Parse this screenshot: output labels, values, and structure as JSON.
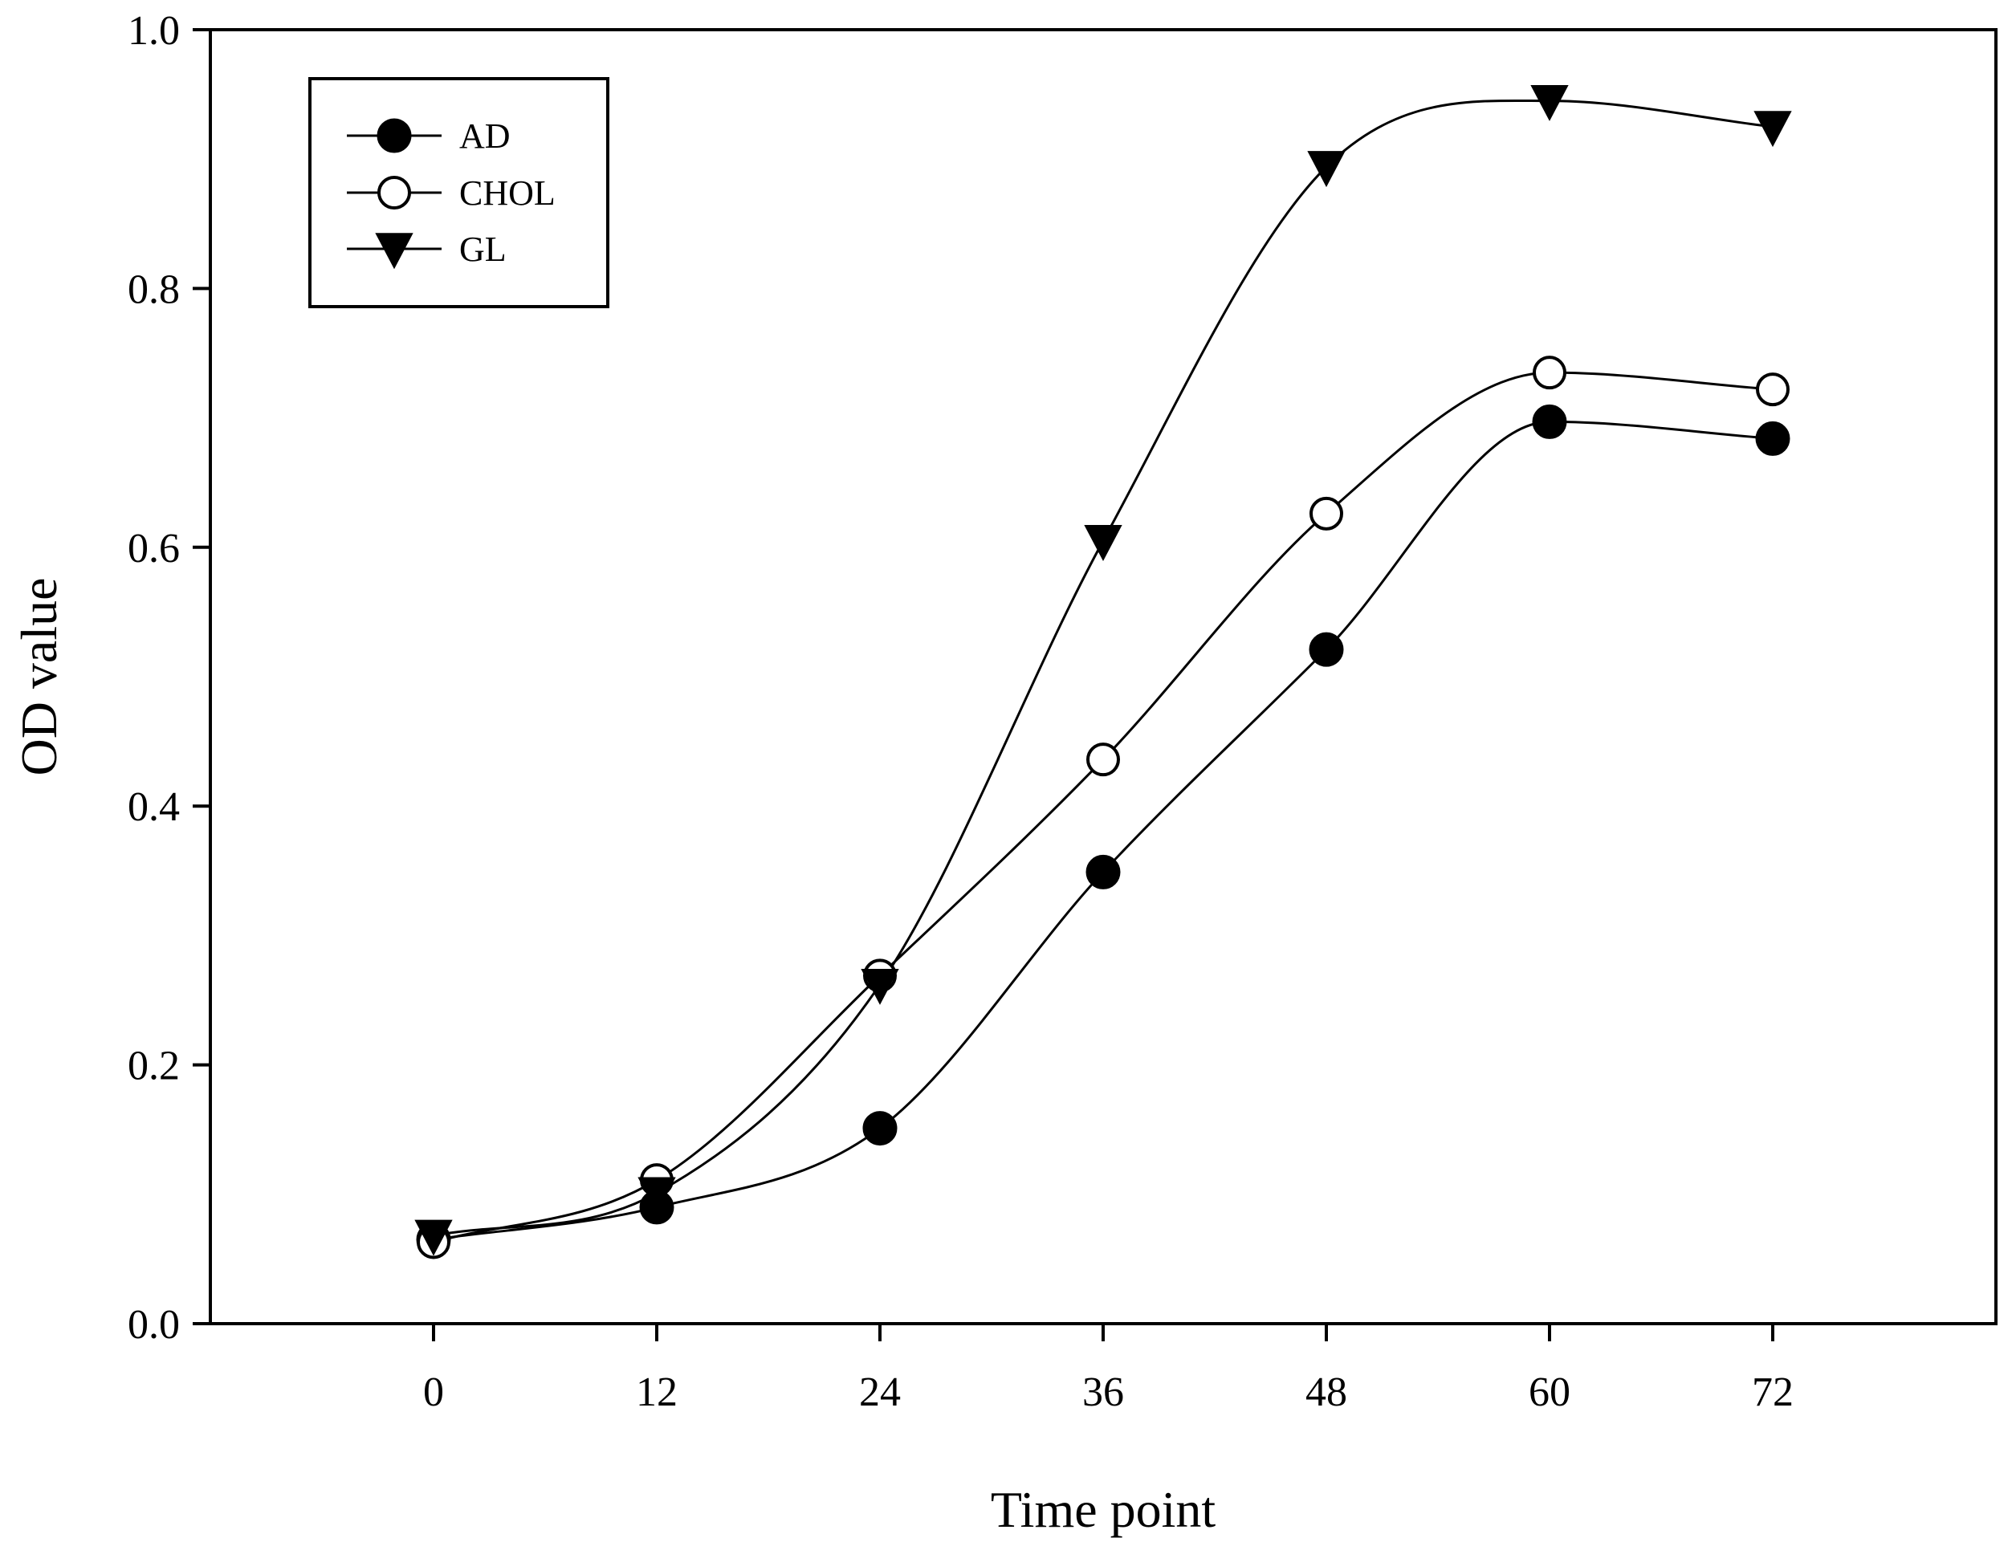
{
  "chart_data": {
    "type": "line",
    "title": "",
    "xlabel": "Time point",
    "ylabel": "OD value",
    "x": [
      0,
      12,
      24,
      36,
      48,
      60,
      72
    ],
    "xticks": [
      "0",
      "12",
      "24",
      "36",
      "48",
      "60",
      "72"
    ],
    "xlim": [
      -12,
      84
    ],
    "ylim": [
      0.0,
      1.0
    ],
    "yticks": [
      "0.0",
      "0.2",
      "0.4",
      "0.6",
      "0.8",
      "1.0"
    ],
    "grid": false,
    "legend_position": "top-left",
    "series": [
      {
        "name": "AD",
        "marker": "filled-circle",
        "values": [
          0.065,
          0.09,
          0.151,
          0.349,
          0.521,
          0.697,
          0.684
        ]
      },
      {
        "name": "CHOL",
        "marker": "open-circle",
        "values": [
          0.063,
          0.111,
          0.269,
          0.436,
          0.626,
          0.735,
          0.722
        ]
      },
      {
        "name": "GL",
        "marker": "filled-triangle-down",
        "values": [
          0.068,
          0.101,
          0.262,
          0.605,
          0.894,
          0.945,
          0.925
        ]
      }
    ],
    "colors": {
      "line": "#000000",
      "fill": "#000000",
      "open_fill": "#ffffff"
    }
  }
}
